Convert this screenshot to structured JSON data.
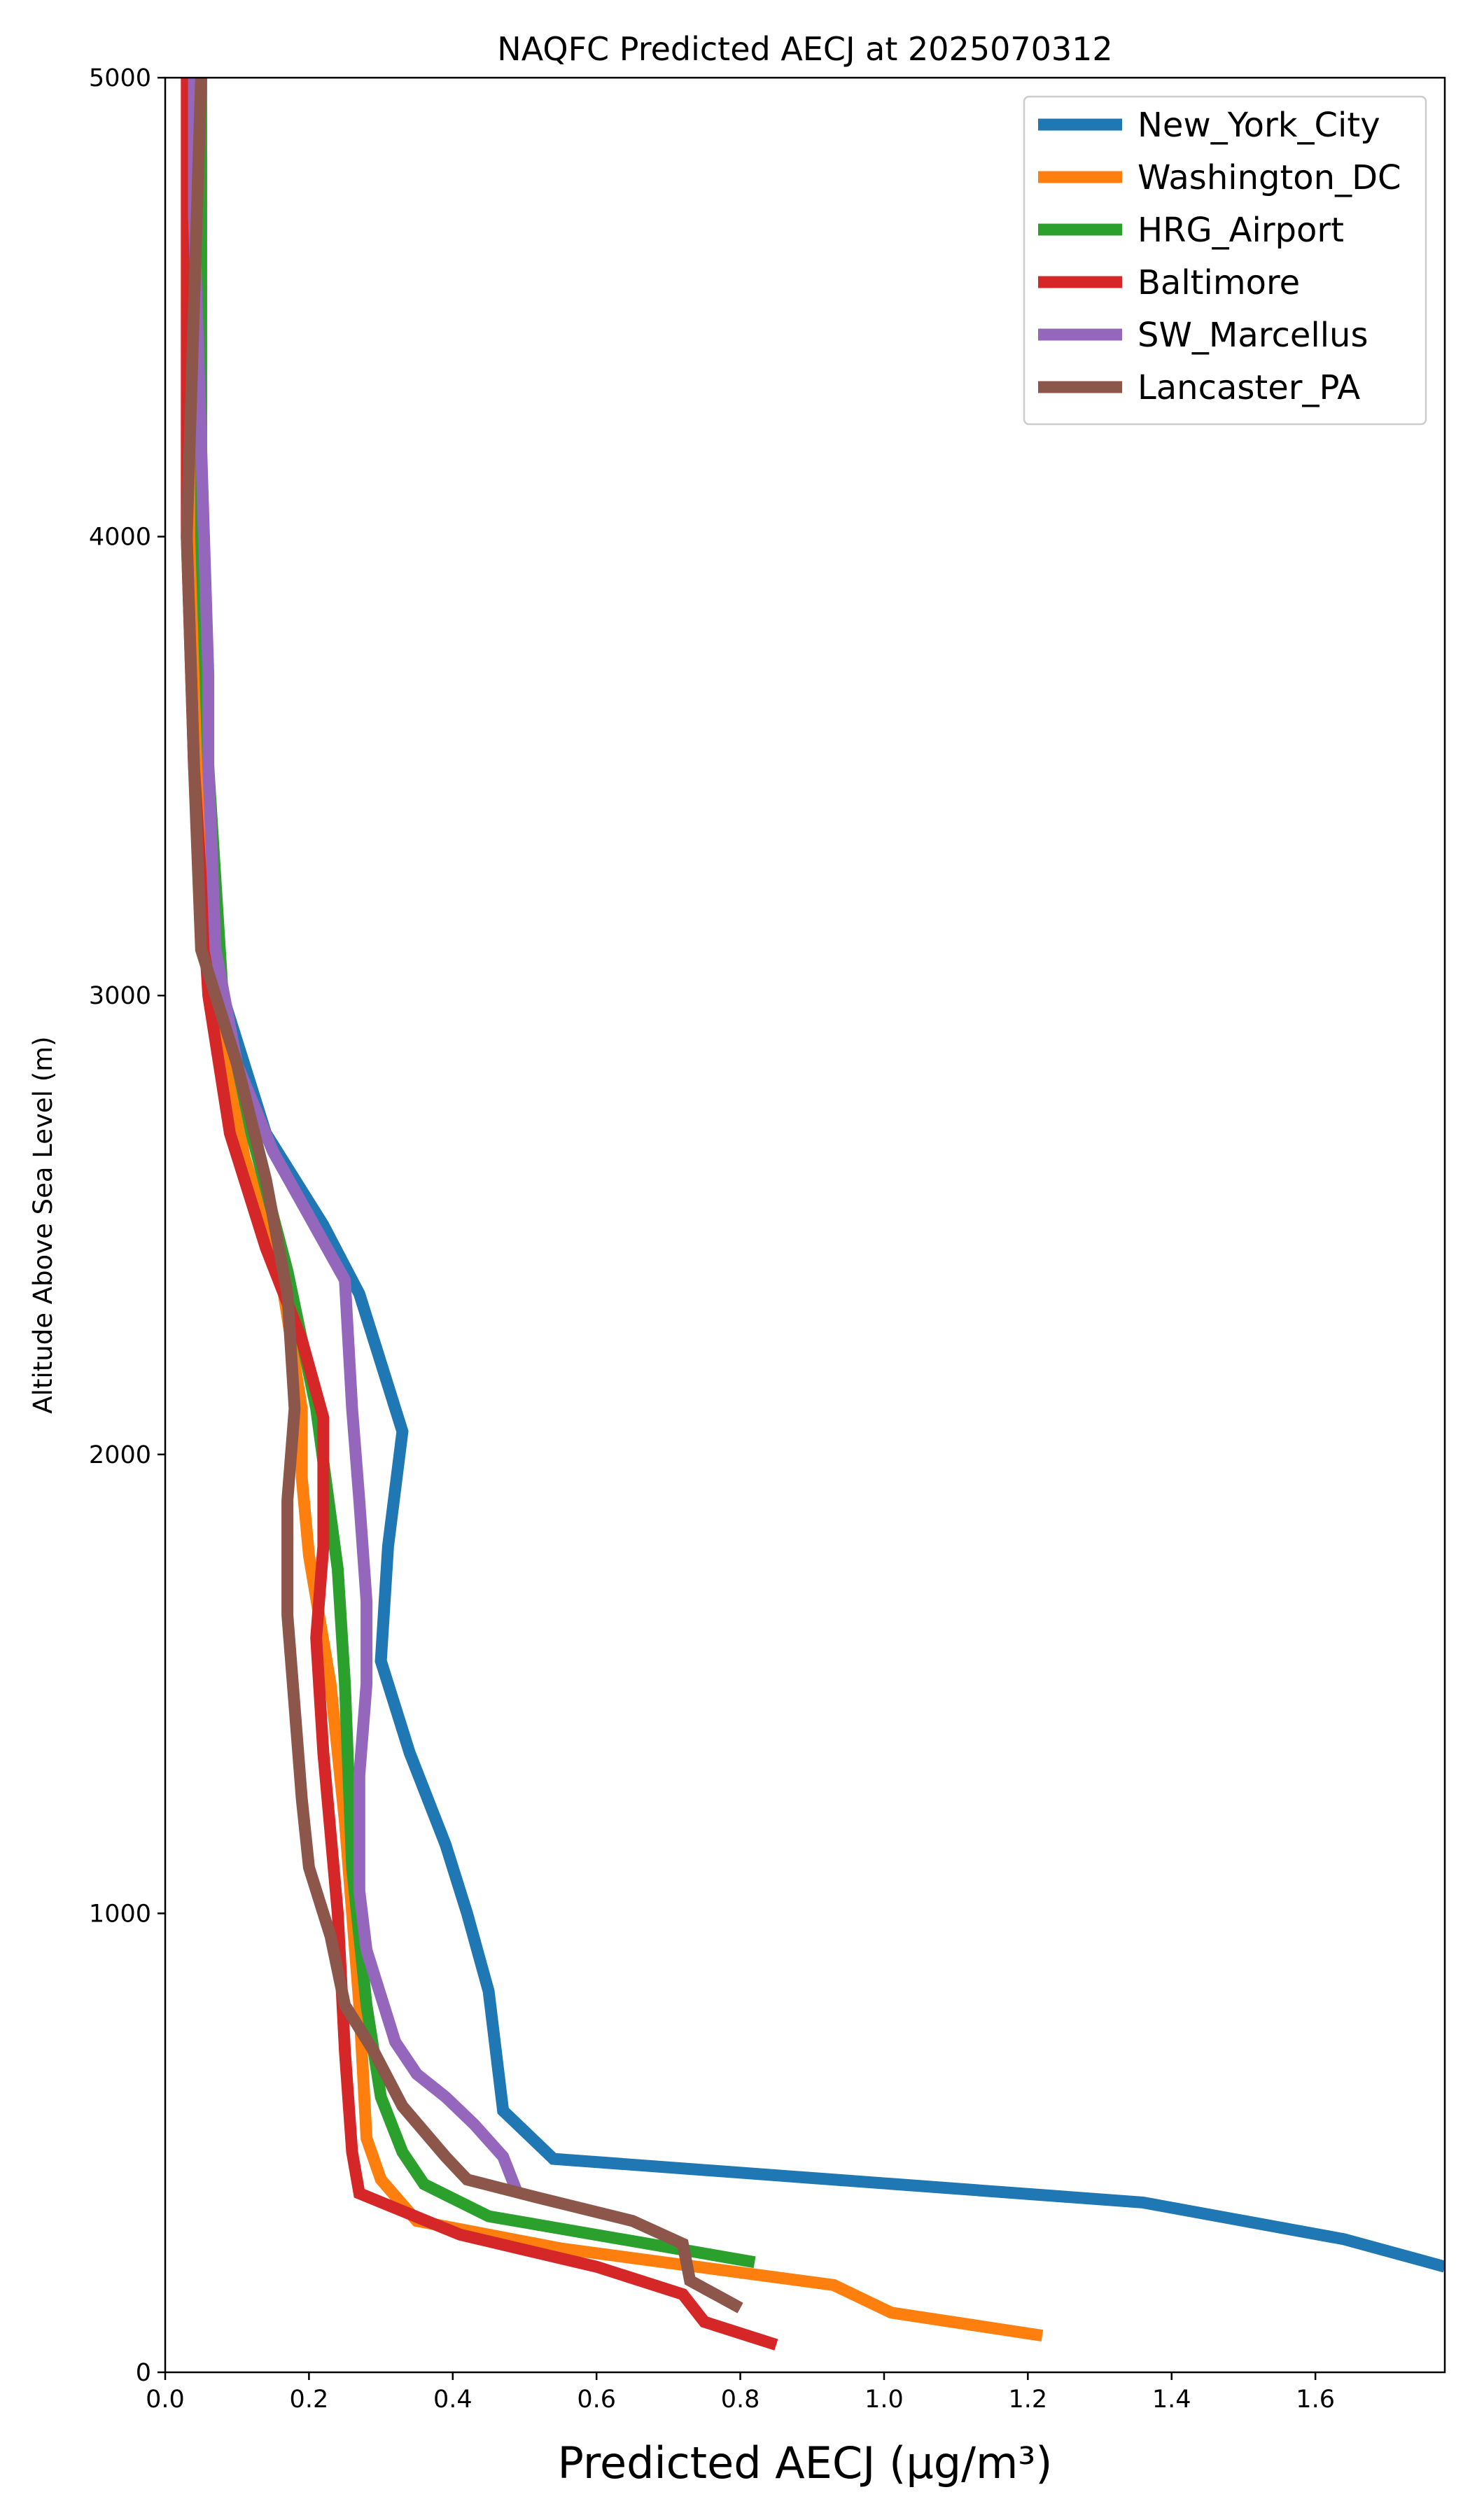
{
  "chart_data": {
    "type": "line",
    "title": "NAQFC Predicted AECJ at 2025070312",
    "xlabel": "Predicted AECJ (μg/m³)",
    "ylabel": "Altitude Above Sea Level (m)",
    "xlim": [
      0.0,
      1.78
    ],
    "ylim": [
      0,
      5000
    ],
    "xticks": [
      "0.0",
      "0.2",
      "0.4",
      "0.6",
      "0.8",
      "1.0",
      "1.2",
      "1.4",
      "1.6"
    ],
    "xtick_values": [
      0.0,
      0.2,
      0.4,
      0.6,
      0.8,
      1.0,
      1.2,
      1.4,
      1.6
    ],
    "yticks": [
      "0",
      "1000",
      "2000",
      "3000",
      "4000",
      "5000"
    ],
    "ytick_values": [
      0,
      1000,
      2000,
      3000,
      4000,
      5000
    ],
    "grid": false,
    "legend_position": "top-right",
    "series": [
      {
        "name": "New_York_City",
        "color": "#1f77b4",
        "points": [
          [
            1.78,
            230
          ],
          [
            1.64,
            290
          ],
          [
            1.36,
            370
          ],
          [
            0.54,
            465
          ],
          [
            0.47,
            570
          ],
          [
            0.45,
            830
          ],
          [
            0.42,
            1000
          ],
          [
            0.39,
            1150
          ],
          [
            0.34,
            1350
          ],
          [
            0.3,
            1550
          ],
          [
            0.31,
            1800
          ],
          [
            0.33,
            2050
          ],
          [
            0.27,
            2350
          ],
          [
            0.22,
            2500
          ],
          [
            0.14,
            2700
          ],
          [
            0.08,
            3000
          ],
          [
            0.06,
            3300
          ],
          [
            0.05,
            3700
          ],
          [
            0.05,
            4200
          ],
          [
            0.05,
            4600
          ],
          [
            0.05,
            5000
          ]
        ]
      },
      {
        "name": "Washington_DC",
        "color": "#ff7f0e",
        "points": [
          [
            1.22,
            80
          ],
          [
            1.01,
            130
          ],
          [
            0.93,
            190
          ],
          [
            0.55,
            270
          ],
          [
            0.35,
            330
          ],
          [
            0.3,
            420
          ],
          [
            0.28,
            510
          ],
          [
            0.27,
            800
          ],
          [
            0.25,
            1200
          ],
          [
            0.23,
            1500
          ],
          [
            0.2,
            1780
          ],
          [
            0.19,
            1950
          ],
          [
            0.19,
            2100
          ],
          [
            0.16,
            2400
          ],
          [
            0.11,
            2650
          ],
          [
            0.07,
            3000
          ],
          [
            0.05,
            3500
          ],
          [
            0.04,
            4000
          ],
          [
            0.04,
            5000
          ]
        ]
      },
      {
        "name": "HRG_Airport",
        "color": "#2ca02c",
        "points": [
          [
            0.82,
            240
          ],
          [
            0.45,
            340
          ],
          [
            0.36,
            410
          ],
          [
            0.33,
            480
          ],
          [
            0.3,
            600
          ],
          [
            0.28,
            800
          ],
          [
            0.26,
            1100
          ],
          [
            0.25,
            1500
          ],
          [
            0.24,
            1750
          ],
          [
            0.21,
            2100
          ],
          [
            0.17,
            2400
          ],
          [
            0.12,
            2700
          ],
          [
            0.08,
            3000
          ],
          [
            0.06,
            3500
          ],
          [
            0.05,
            4000
          ],
          [
            0.05,
            4500
          ],
          [
            0.05,
            5000
          ]
        ]
      },
      {
        "name": "Baltimore",
        "color": "#d62728",
        "points": [
          [
            0.85,
            60
          ],
          [
            0.75,
            110
          ],
          [
            0.72,
            170
          ],
          [
            0.6,
            230
          ],
          [
            0.41,
            300
          ],
          [
            0.27,
            390
          ],
          [
            0.26,
            480
          ],
          [
            0.25,
            700
          ],
          [
            0.24,
            1000
          ],
          [
            0.22,
            1350
          ],
          [
            0.21,
            1600
          ],
          [
            0.22,
            1800
          ],
          [
            0.22,
            2080
          ],
          [
            0.19,
            2250
          ],
          [
            0.14,
            2450
          ],
          [
            0.09,
            2700
          ],
          [
            0.06,
            3000
          ],
          [
            0.04,
            3500
          ],
          [
            0.03,
            4000
          ],
          [
            0.03,
            4500
          ],
          [
            0.03,
            5000
          ]
        ]
      },
      {
        "name": "SW_Marcellus",
        "color": "#9467bd",
        "points": [
          [
            0.49,
            390
          ],
          [
            0.47,
            470
          ],
          [
            0.43,
            540
          ],
          [
            0.39,
            600
          ],
          [
            0.35,
            650
          ],
          [
            0.32,
            720
          ],
          [
            0.3,
            820
          ],
          [
            0.28,
            920
          ],
          [
            0.27,
            1050
          ],
          [
            0.27,
            1300
          ],
          [
            0.28,
            1500
          ],
          [
            0.28,
            1680
          ],
          [
            0.27,
            1900
          ],
          [
            0.26,
            2100
          ],
          [
            0.25,
            2380
          ],
          [
            0.2,
            2520
          ],
          [
            0.15,
            2660
          ],
          [
            0.1,
            2850
          ],
          [
            0.07,
            3100
          ],
          [
            0.06,
            3500
          ],
          [
            0.06,
            3700
          ],
          [
            0.05,
            4200
          ],
          [
            0.04,
            4700
          ],
          [
            0.04,
            5000
          ]
        ]
      },
      {
        "name": "Lancaster_PA",
        "color": "#8c564b",
        "points": [
          [
            0.8,
            140
          ],
          [
            0.73,
            200
          ],
          [
            0.72,
            280
          ],
          [
            0.65,
            330
          ],
          [
            0.52,
            380
          ],
          [
            0.42,
            420
          ],
          [
            0.39,
            470
          ],
          [
            0.33,
            580
          ],
          [
            0.29,
            700
          ],
          [
            0.25,
            800
          ],
          [
            0.23,
            950
          ],
          [
            0.2,
            1100
          ],
          [
            0.19,
            1250
          ],
          [
            0.18,
            1450
          ],
          [
            0.17,
            1650
          ],
          [
            0.17,
            1900
          ],
          [
            0.18,
            2100
          ],
          [
            0.17,
            2350
          ],
          [
            0.14,
            2600
          ],
          [
            0.1,
            2850
          ],
          [
            0.05,
            3100
          ],
          [
            0.04,
            3500
          ],
          [
            0.03,
            4000
          ],
          [
            0.04,
            4500
          ],
          [
            0.05,
            5000
          ]
        ]
      }
    ]
  }
}
